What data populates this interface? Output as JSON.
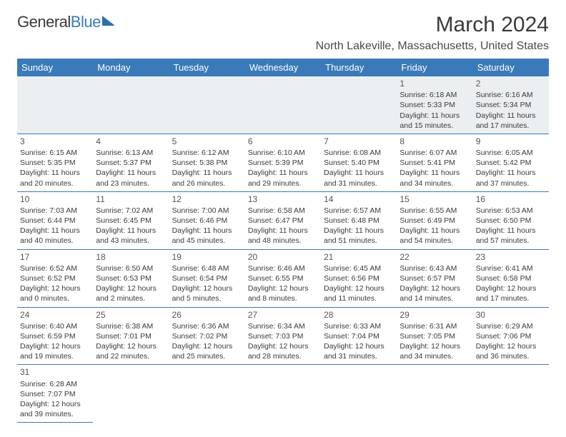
{
  "logo": {
    "text_dark": "General",
    "text_blue": "Blue"
  },
  "title": "March 2024",
  "location": "North Lakeville, Massachusetts, United States",
  "colors": {
    "header_bg": "#3a7ab8",
    "header_fg": "#ffffff",
    "row_border": "#3a7ab8",
    "empty_bg": "#eceff1",
    "text": "#3a3a3a"
  },
  "day_headers": [
    "Sunday",
    "Monday",
    "Tuesday",
    "Wednesday",
    "Thursday",
    "Friday",
    "Saturday"
  ],
  "weeks": [
    [
      null,
      null,
      null,
      null,
      null,
      {
        "n": "1",
        "sr": "6:18 AM",
        "ss": "5:33 PM",
        "dh": "11",
        "dm": "15"
      },
      {
        "n": "2",
        "sr": "6:16 AM",
        "ss": "5:34 PM",
        "dh": "11",
        "dm": "17"
      }
    ],
    [
      {
        "n": "3",
        "sr": "6:15 AM",
        "ss": "5:35 PM",
        "dh": "11",
        "dm": "20"
      },
      {
        "n": "4",
        "sr": "6:13 AM",
        "ss": "5:37 PM",
        "dh": "11",
        "dm": "23"
      },
      {
        "n": "5",
        "sr": "6:12 AM",
        "ss": "5:38 PM",
        "dh": "11",
        "dm": "26"
      },
      {
        "n": "6",
        "sr": "6:10 AM",
        "ss": "5:39 PM",
        "dh": "11",
        "dm": "29"
      },
      {
        "n": "7",
        "sr": "6:08 AM",
        "ss": "5:40 PM",
        "dh": "11",
        "dm": "31"
      },
      {
        "n": "8",
        "sr": "6:07 AM",
        "ss": "5:41 PM",
        "dh": "11",
        "dm": "34"
      },
      {
        "n": "9",
        "sr": "6:05 AM",
        "ss": "5:42 PM",
        "dh": "11",
        "dm": "37"
      }
    ],
    [
      {
        "n": "10",
        "sr": "7:03 AM",
        "ss": "6:44 PM",
        "dh": "11",
        "dm": "40"
      },
      {
        "n": "11",
        "sr": "7:02 AM",
        "ss": "6:45 PM",
        "dh": "11",
        "dm": "43"
      },
      {
        "n": "12",
        "sr": "7:00 AM",
        "ss": "6:46 PM",
        "dh": "11",
        "dm": "45"
      },
      {
        "n": "13",
        "sr": "6:58 AM",
        "ss": "6:47 PM",
        "dh": "11",
        "dm": "48"
      },
      {
        "n": "14",
        "sr": "6:57 AM",
        "ss": "6:48 PM",
        "dh": "11",
        "dm": "51"
      },
      {
        "n": "15",
        "sr": "6:55 AM",
        "ss": "6:49 PM",
        "dh": "11",
        "dm": "54"
      },
      {
        "n": "16",
        "sr": "6:53 AM",
        "ss": "6:50 PM",
        "dh": "11",
        "dm": "57"
      }
    ],
    [
      {
        "n": "17",
        "sr": "6:52 AM",
        "ss": "6:52 PM",
        "dh": "12",
        "dm": "0"
      },
      {
        "n": "18",
        "sr": "6:50 AM",
        "ss": "6:53 PM",
        "dh": "12",
        "dm": "2"
      },
      {
        "n": "19",
        "sr": "6:48 AM",
        "ss": "6:54 PM",
        "dh": "12",
        "dm": "5"
      },
      {
        "n": "20",
        "sr": "6:46 AM",
        "ss": "6:55 PM",
        "dh": "12",
        "dm": "8"
      },
      {
        "n": "21",
        "sr": "6:45 AM",
        "ss": "6:56 PM",
        "dh": "12",
        "dm": "11"
      },
      {
        "n": "22",
        "sr": "6:43 AM",
        "ss": "6:57 PM",
        "dh": "12",
        "dm": "14"
      },
      {
        "n": "23",
        "sr": "6:41 AM",
        "ss": "6:58 PM",
        "dh": "12",
        "dm": "17"
      }
    ],
    [
      {
        "n": "24",
        "sr": "6:40 AM",
        "ss": "6:59 PM",
        "dh": "12",
        "dm": "19"
      },
      {
        "n": "25",
        "sr": "6:38 AM",
        "ss": "7:01 PM",
        "dh": "12",
        "dm": "22"
      },
      {
        "n": "26",
        "sr": "6:36 AM",
        "ss": "7:02 PM",
        "dh": "12",
        "dm": "25"
      },
      {
        "n": "27",
        "sr": "6:34 AM",
        "ss": "7:03 PM",
        "dh": "12",
        "dm": "28"
      },
      {
        "n": "28",
        "sr": "6:33 AM",
        "ss": "7:04 PM",
        "dh": "12",
        "dm": "31"
      },
      {
        "n": "29",
        "sr": "6:31 AM",
        "ss": "7:05 PM",
        "dh": "12",
        "dm": "34"
      },
      {
        "n": "30",
        "sr": "6:29 AM",
        "ss": "7:06 PM",
        "dh": "12",
        "dm": "36"
      }
    ],
    [
      {
        "n": "31",
        "sr": "6:28 AM",
        "ss": "7:07 PM",
        "dh": "12",
        "dm": "39"
      },
      null,
      null,
      null,
      null,
      null,
      null
    ]
  ],
  "labels": {
    "sunrise": "Sunrise: ",
    "sunset": "Sunset: ",
    "daylight_pre": "Daylight: ",
    "daylight_mid": " hours and ",
    "daylight_suf": " minutes."
  }
}
